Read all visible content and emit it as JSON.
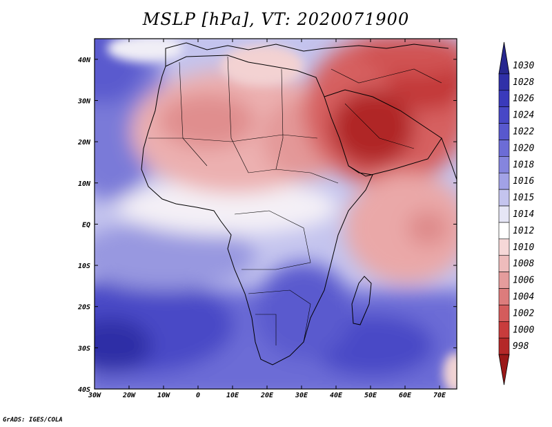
{
  "title": "MSLP [hPa], VT: 2020071900",
  "credit": "GrADS: IGES/COLA",
  "map": {
    "lon_range": [
      -30,
      75
    ],
    "lat_range": [
      -40,
      45
    ],
    "lon_ticks": [
      {
        "value": -30,
        "label": "30W"
      },
      {
        "value": -20,
        "label": "20W"
      },
      {
        "value": -10,
        "label": "10W"
      },
      {
        "value": 0,
        "label": "0"
      },
      {
        "value": 10,
        "label": "10E"
      },
      {
        "value": 20,
        "label": "20E"
      },
      {
        "value": 30,
        "label": "30E"
      },
      {
        "value": 40,
        "label": "40E"
      },
      {
        "value": 50,
        "label": "50E"
      },
      {
        "value": 60,
        "label": "60E"
      },
      {
        "value": 70,
        "label": "70E"
      }
    ],
    "lat_ticks": [
      {
        "value": 40,
        "label": "40N"
      },
      {
        "value": 30,
        "label": "30N"
      },
      {
        "value": 20,
        "label": "20N"
      },
      {
        "value": 10,
        "label": "10N"
      },
      {
        "value": 0,
        "label": "EQ"
      },
      {
        "value": -10,
        "label": "10S"
      },
      {
        "value": -20,
        "label": "20S"
      },
      {
        "value": -30,
        "label": "30S"
      },
      {
        "value": -40,
        "label": "40S"
      }
    ]
  },
  "colorbar": {
    "labels": [
      "1030",
      "1028",
      "1026",
      "1024",
      "1022",
      "1020",
      "1018",
      "1016",
      "1015",
      "1014",
      "1012",
      "1010",
      "1008",
      "1006",
      "1004",
      "1002",
      "1000",
      "998"
    ],
    "colors": [
      "#28288f",
      "#3030a8",
      "#3a3abb",
      "#4848c6",
      "#5858ce",
      "#6c6cd6",
      "#8585de",
      "#a2a2e6",
      "#c4c4ee",
      "#e6e6f6",
      "#ffffff",
      "#f6d8d8",
      "#eebcbc",
      "#e59c9c",
      "#dc7c7c",
      "#d45c5c",
      "#c83c3c",
      "#b42828",
      "#9a1818"
    ]
  }
}
